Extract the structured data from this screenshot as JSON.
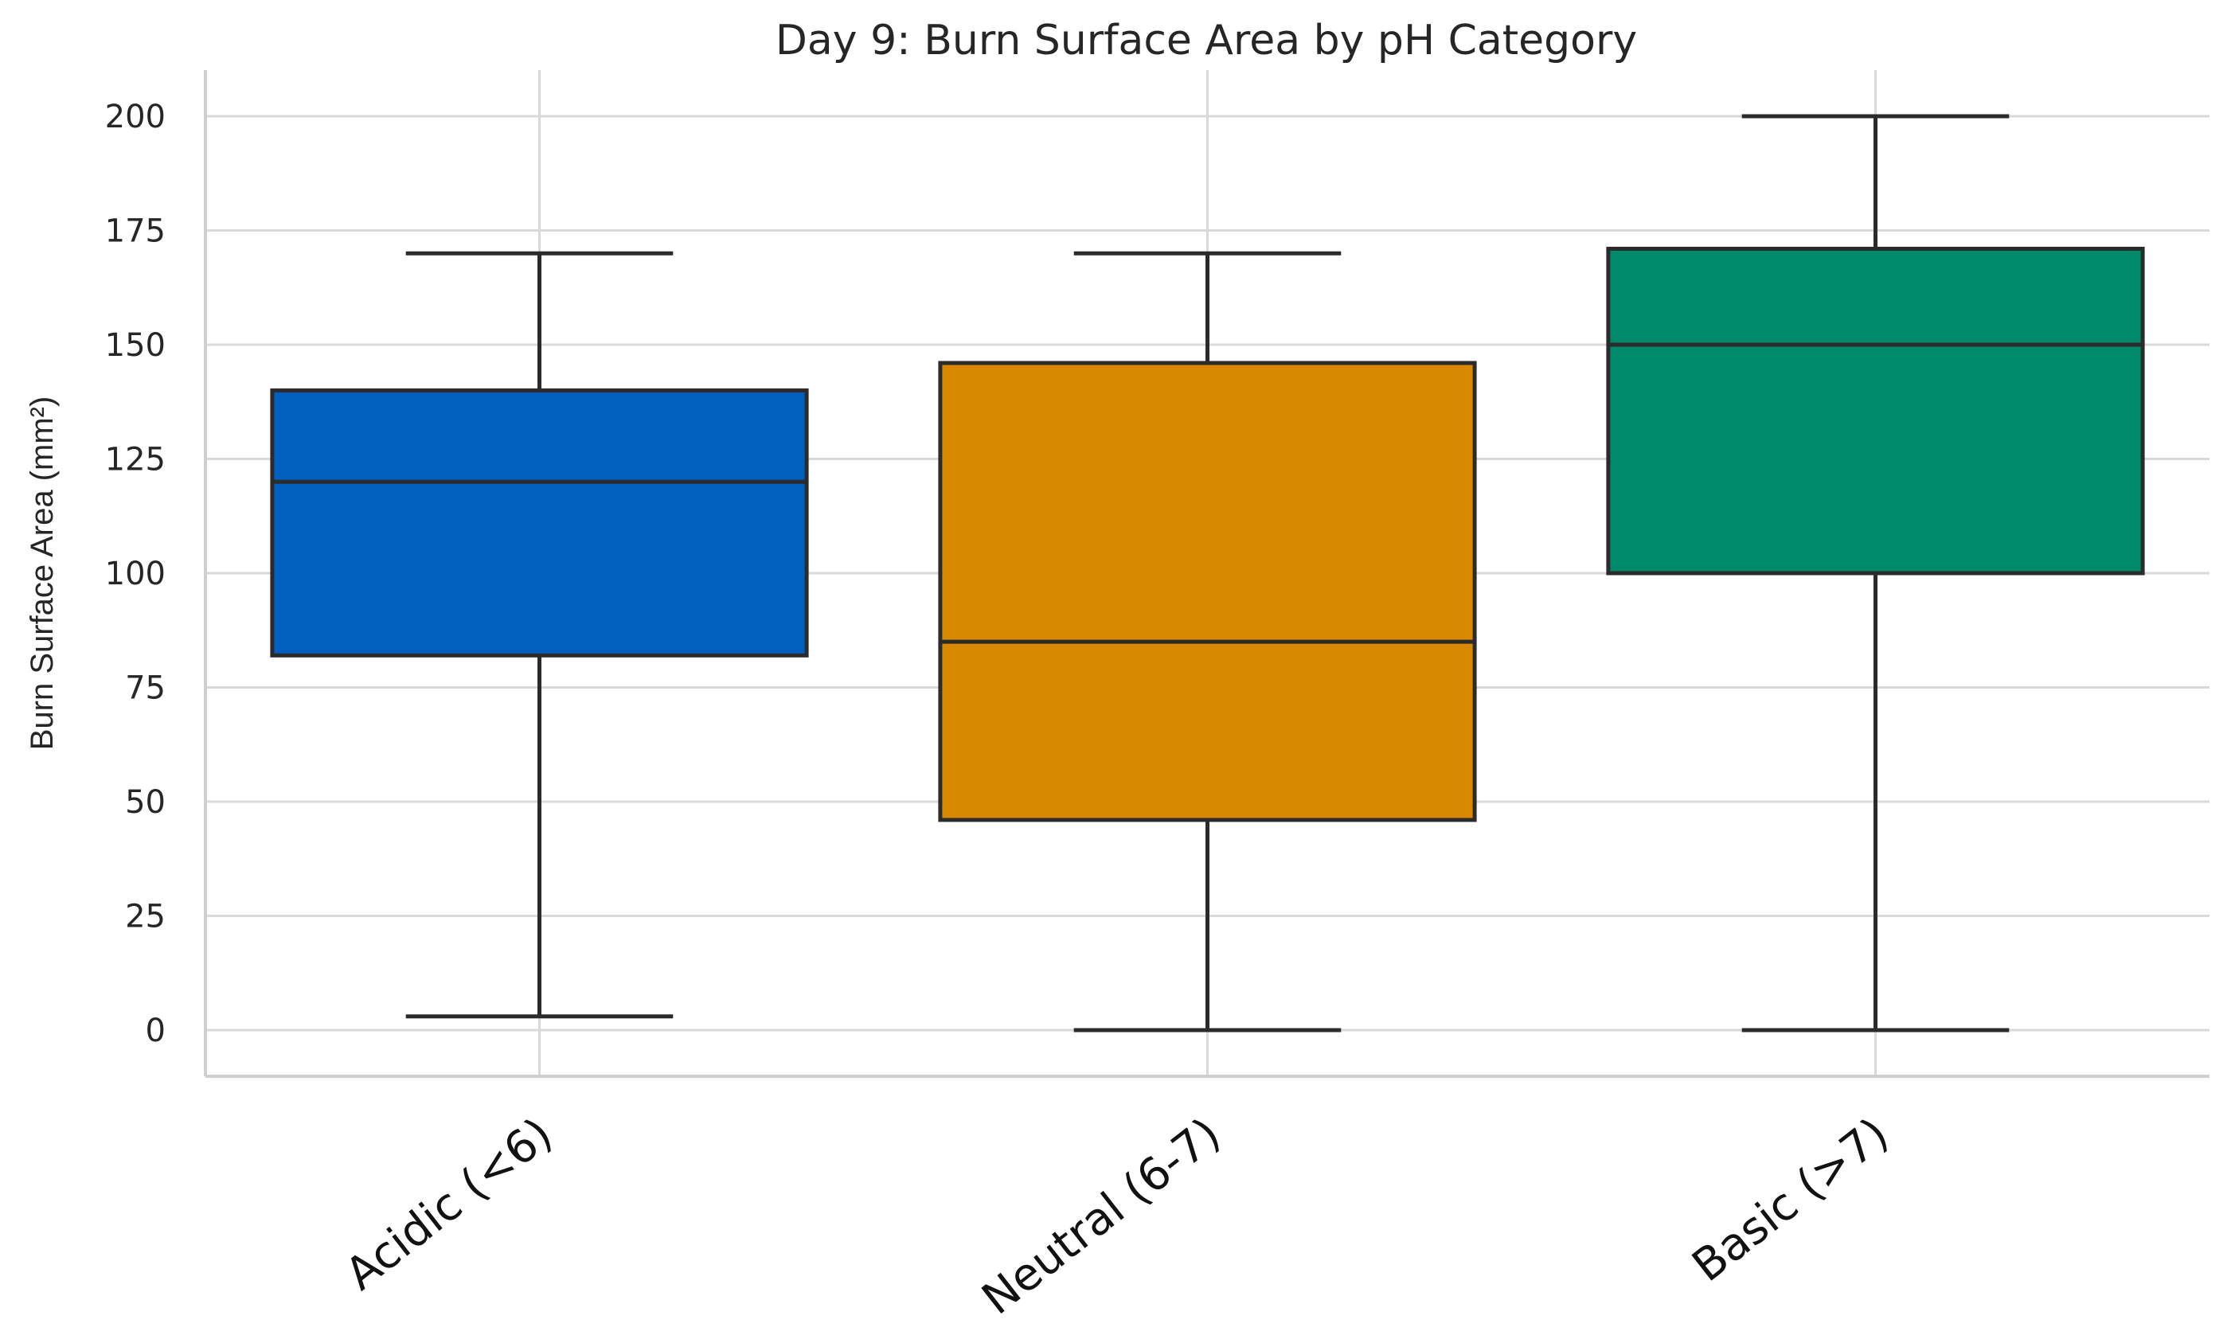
{
  "chart_data": {
    "type": "box",
    "title": "Day 9: Burn Surface Area by pH Category",
    "xlabel": "",
    "ylabel": "Burn Surface Area (mm²)",
    "ylim": [
      -10,
      210
    ],
    "yticks": [
      0,
      25,
      50,
      75,
      100,
      125,
      150,
      175,
      200
    ],
    "grid": true,
    "categories": [
      "Acidic (<6)",
      "Neutral (6-7)",
      "Basic (>7)"
    ],
    "boxes": [
      {
        "category": "Acidic (<6)",
        "min": 3,
        "q1": 82,
        "median": 120,
        "q3": 140,
        "max": 170,
        "color": "#005fbf"
      },
      {
        "category": "Neutral (6-7)",
        "min": 0,
        "q1": 46,
        "median": 85,
        "q3": 146,
        "max": 170,
        "color": "#d98900"
      },
      {
        "category": "Basic (>7)",
        "min": 0,
        "q1": 100,
        "median": 150,
        "q3": 171,
        "max": 200,
        "color": "#00896a"
      }
    ]
  }
}
